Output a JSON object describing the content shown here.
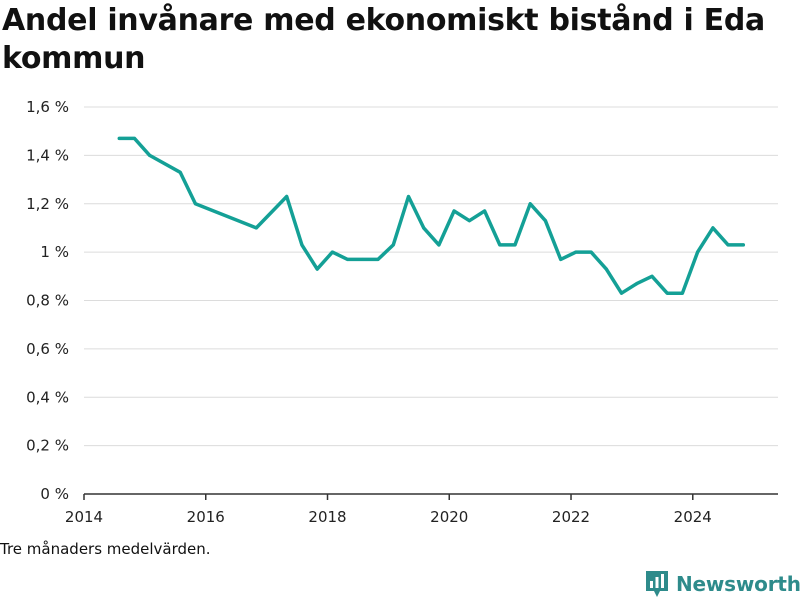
{
  "title": "Andel invånare med ekonomiskt bistånd i Eda kommun",
  "note": "Tre månaders medelvärden.",
  "brand": {
    "name": "Newsworthy",
    "icon": "newsworthy-logo-icon",
    "color": "#2e8b8b"
  },
  "chart_data": {
    "type": "line",
    "title": "Andel invånare med ekonomiskt bistånd i Eda kommun",
    "xlabel": "",
    "ylabel": "",
    "xlim": [
      2014,
      2025.4
    ],
    "ylim": [
      0,
      1.6
    ],
    "x_ticks": [
      {
        "value": 2014,
        "label": "2014"
      },
      {
        "value": 2016,
        "label": "2016"
      },
      {
        "value": 2018,
        "label": "2018"
      },
      {
        "value": 2020,
        "label": "2020"
      },
      {
        "value": 2022,
        "label": "2022"
      },
      {
        "value": 2024,
        "label": "2024"
      }
    ],
    "y_ticks": [
      {
        "value": 0,
        "label": "0 %"
      },
      {
        "value": 0.2,
        "label": "0,2 %"
      },
      {
        "value": 0.4,
        "label": "0,4 %"
      },
      {
        "value": 0.6,
        "label": "0,6 %"
      },
      {
        "value": 0.8,
        "label": "0,8 %"
      },
      {
        "value": 1.0,
        "label": "1 %"
      },
      {
        "value": 1.2,
        "label": "1,2 %"
      },
      {
        "value": 1.4,
        "label": "1,4 %"
      },
      {
        "value": 1.6,
        "label": "1,6 %"
      }
    ],
    "grid": true,
    "line_color": "#14a096",
    "series": [
      {
        "x": [
          2014.58,
          2014.83,
          2015.08,
          2015.58,
          2015.83,
          2016.83,
          2017.33,
          2017.58,
          2017.83,
          2018.08,
          2018.33,
          2018.58,
          2018.83,
          2019.08,
          2019.33,
          2019.58,
          2019.83,
          2020.08,
          2020.33,
          2020.58,
          2020.83,
          2021.08,
          2021.33,
          2021.58,
          2021.83,
          2022.08,
          2022.33,
          2022.58,
          2022.83,
          2023.08,
          2023.33,
          2023.58,
          2023.83,
          2024.08,
          2024.33,
          2024.58,
          2024.83
        ],
        "values": [
          1.47,
          1.47,
          1.4,
          1.33,
          1.2,
          1.1,
          1.23,
          1.03,
          0.93,
          1.0,
          0.97,
          0.97,
          0.97,
          1.03,
          1.23,
          1.1,
          1.03,
          1.17,
          1.13,
          1.17,
          1.03,
          1.03,
          1.2,
          1.13,
          0.97,
          1.0,
          1.0,
          0.93,
          0.83,
          0.87,
          0.9,
          0.83,
          0.83,
          1.0,
          1.1,
          1.03,
          1.03
        ]
      }
    ]
  }
}
